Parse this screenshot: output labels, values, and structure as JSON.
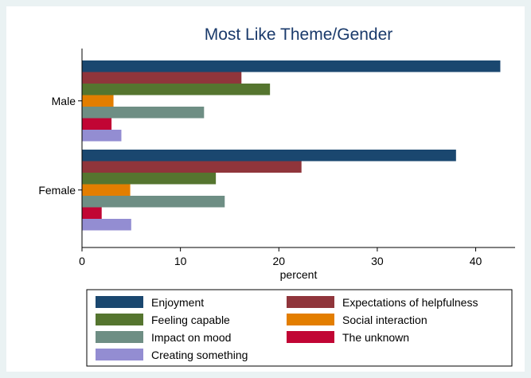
{
  "chart_data": {
    "type": "bar",
    "orientation": "horizontal",
    "title": "Most Like Theme/Gender",
    "xlabel": "percent",
    "ylabel": "",
    "xlim": [
      0,
      44
    ],
    "xticks": [
      0,
      10,
      20,
      30,
      40
    ],
    "categories": [
      "Male",
      "Female"
    ],
    "series": [
      {
        "name": "Enjoyment",
        "color": "#1a476f",
        "values": [
          42.5,
          38.0
        ]
      },
      {
        "name": "Expectations of helpfulness",
        "color": "#90353b",
        "values": [
          16.2,
          22.3
        ]
      },
      {
        "name": "Feeling capable",
        "color": "#55752f",
        "values": [
          19.1,
          13.6
        ]
      },
      {
        "name": "Social interaction",
        "color": "#e37e00",
        "values": [
          3.2,
          4.9
        ]
      },
      {
        "name": "Impact on mood",
        "color": "#6e8e84",
        "values": [
          12.4,
          14.5
        ]
      },
      {
        "name": "The unknown",
        "color": "#c10534",
        "values": [
          3.0,
          2.0
        ]
      },
      {
        "name": "Creating something",
        "color": "#938dd2",
        "values": [
          4.0,
          5.0
        ]
      }
    ],
    "grid": false,
    "legend_position": "bottom"
  }
}
